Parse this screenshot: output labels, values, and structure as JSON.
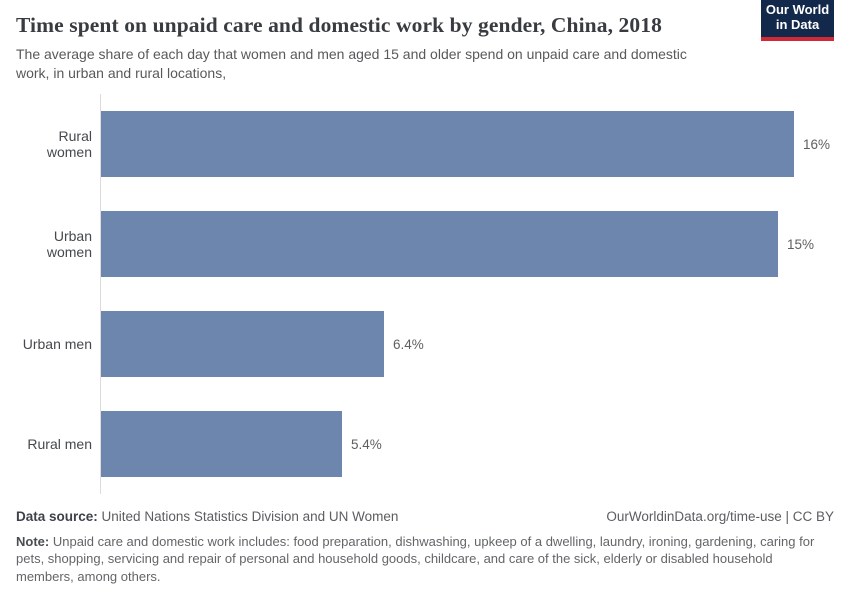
{
  "header": {
    "title": "Time spent on unpaid care and domestic work by gender, China, 2018",
    "subtitle": "The average share of each day that women and men aged 15 and older spend on unpaid care and domestic work, in urban and rural locations,",
    "logo": {
      "line1": "Our World",
      "line2": "in Data"
    }
  },
  "chart_data": {
    "type": "bar",
    "orientation": "horizontal",
    "title": "Time spent on unpaid care and domestic work by gender, China, 2018",
    "categories": [
      "Rural women",
      "Urban women",
      "Urban men",
      "Rural men"
    ],
    "values": [
      16,
      15,
      6.4,
      5.4
    ],
    "value_labels": [
      "16%",
      "15%",
      "6.4%",
      "5.4%"
    ],
    "bar_fractions": [
      1.0,
      0.977,
      0.408,
      0.348
    ],
    "unit": "%",
    "xlim": [
      0,
      16
    ],
    "grid": false,
    "legend": "none",
    "bar_color": "#6d86ad",
    "axis_line_color": "#dcdcdc"
  },
  "footer": {
    "datasource_label": "Data source:",
    "datasource_value": "United Nations Statistics Division and UN Women",
    "link": "OurWorldinData.org/time-use | CC BY",
    "note_label": "Note:",
    "note_text": "Unpaid care and domestic work includes: food preparation, dishwashing, upkeep of a dwelling, laundry, ironing, gardening, caring for pets, shopping, servicing and repair of personal and household goods, childcare, and care of the sick, elderly or disabled household members, among others."
  },
  "colors": {
    "bar": "#6d86ad",
    "logo_navy": "#13294c",
    "logo_red": "#cf2a35"
  }
}
